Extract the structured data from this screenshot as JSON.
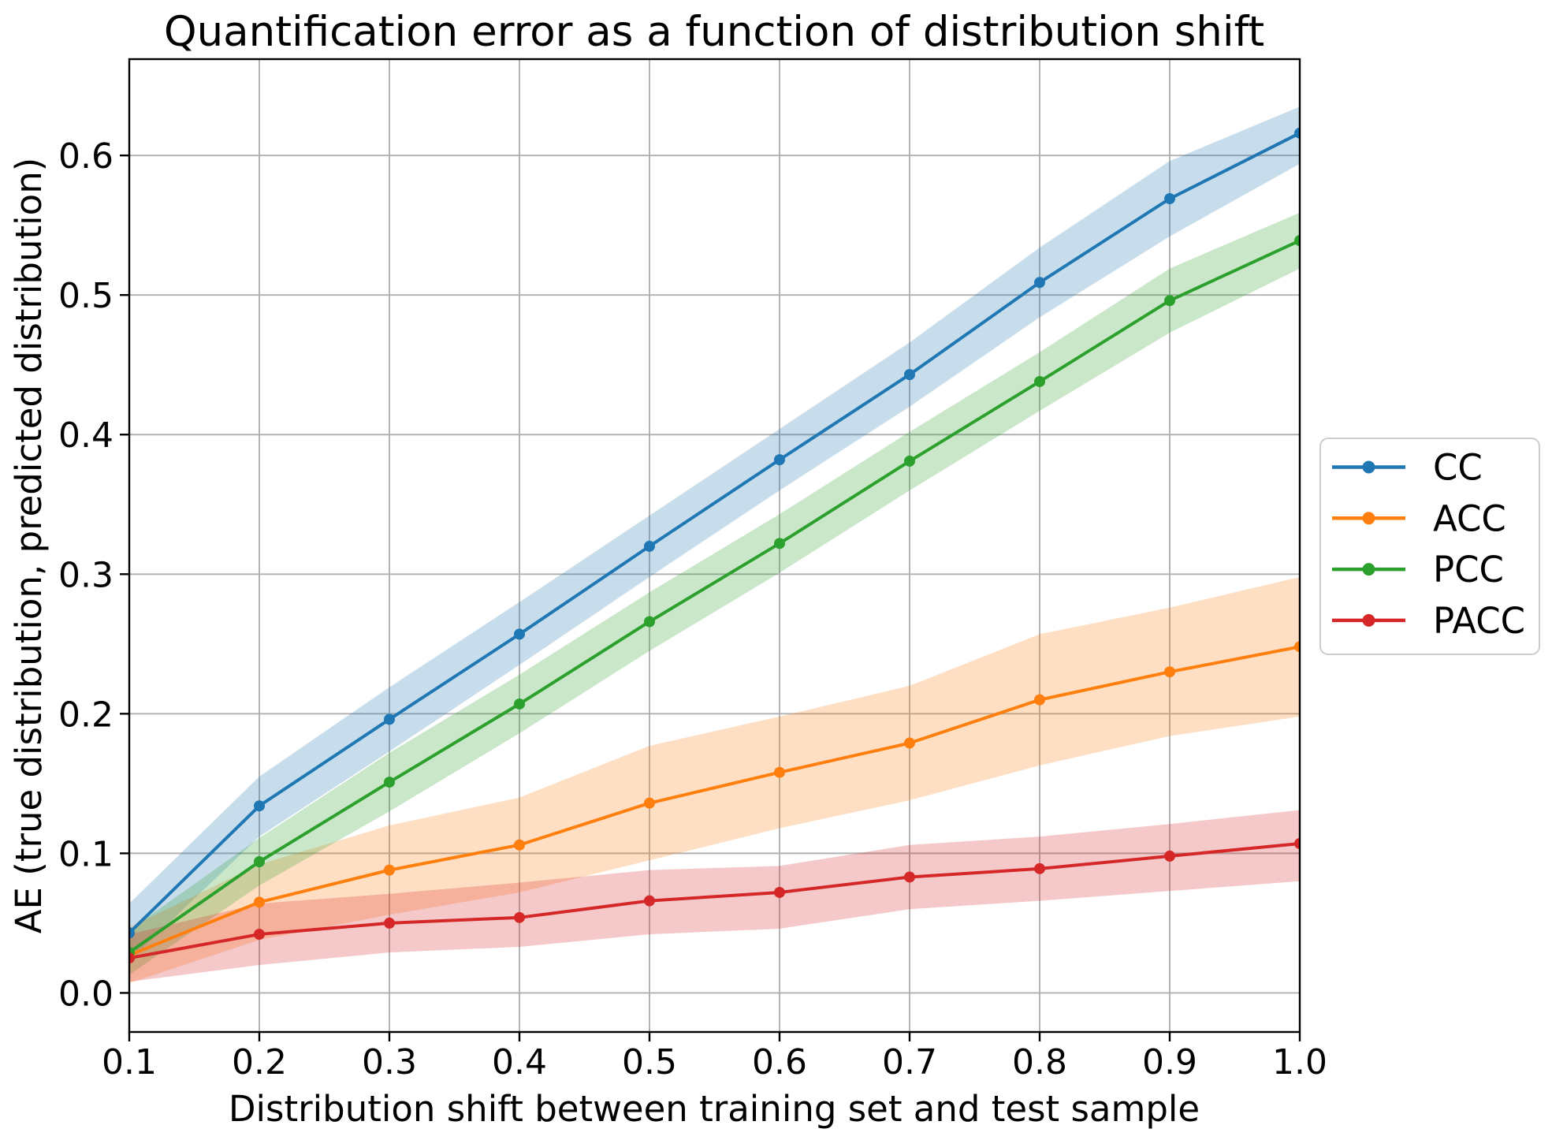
{
  "chart_data": {
    "type": "line",
    "title": "Quantification error as a function of distribution shift",
    "xlabel": "Distribution shift between training set and test sample",
    "ylabel": "AE (true distribution, predicted distribution)",
    "x": [
      0.1,
      0.2,
      0.3,
      0.4,
      0.5,
      0.6,
      0.7,
      0.8,
      0.9,
      1.0
    ],
    "xlim": [
      0.1,
      1.0
    ],
    "ylim": [
      -0.028,
      0.669
    ],
    "xticks": {
      "values": [
        0.1,
        0.2,
        0.3,
        0.4,
        0.5,
        0.6,
        0.7,
        0.8,
        0.9,
        1.0
      ],
      "labels": [
        "0.1",
        "0.2",
        "0.3",
        "0.4",
        "0.5",
        "0.6",
        "0.7",
        "0.8",
        "0.9",
        "1.0"
      ]
    },
    "yticks": {
      "values": [
        0.0,
        0.1,
        0.2,
        0.3,
        0.4,
        0.5,
        0.6
      ],
      "labels": [
        "0.0",
        "0.1",
        "0.2",
        "0.3",
        "0.4",
        "0.5",
        "0.6"
      ]
    },
    "grid": true,
    "grid_color": "#b0b0b0",
    "spine_color": "#000000",
    "background_color": "#ffffff",
    "legend": {
      "position": "outside-right",
      "border_color": "#cccccc",
      "entries": [
        "CC",
        "ACC",
        "PCC",
        "PACC"
      ]
    },
    "band_alpha": 0.25,
    "series": [
      {
        "name": "CC",
        "color": "#1f77b4",
        "values": [
          0.043,
          0.134,
          0.196,
          0.257,
          0.32,
          0.382,
          0.443,
          0.509,
          0.569,
          0.616
        ],
        "band_low": [
          0.023,
          0.112,
          0.173,
          0.235,
          0.298,
          0.36,
          0.42,
          0.484,
          0.542,
          0.594
        ],
        "band_high": [
          0.064,
          0.155,
          0.219,
          0.28,
          0.342,
          0.404,
          0.466,
          0.534,
          0.596,
          0.635
        ]
      },
      {
        "name": "ACC",
        "color": "#ff7f0e",
        "values": [
          0.027,
          0.065,
          0.088,
          0.106,
          0.136,
          0.158,
          0.179,
          0.21,
          0.23,
          0.248
        ],
        "band_low": [
          0.007,
          0.038,
          0.056,
          0.072,
          0.095,
          0.118,
          0.138,
          0.163,
          0.184,
          0.198
        ],
        "band_high": [
          0.047,
          0.092,
          0.12,
          0.14,
          0.177,
          0.198,
          0.22,
          0.257,
          0.276,
          0.298
        ]
      },
      {
        "name": "PCC",
        "color": "#2ca02c",
        "values": [
          0.029,
          0.094,
          0.151,
          0.207,
          0.266,
          0.322,
          0.381,
          0.438,
          0.496,
          0.539
        ],
        "band_low": [
          0.013,
          0.077,
          0.13,
          0.186,
          0.245,
          0.301,
          0.36,
          0.417,
          0.473,
          0.519
        ],
        "band_high": [
          0.045,
          0.111,
          0.172,
          0.228,
          0.287,
          0.343,
          0.402,
          0.459,
          0.519,
          0.559
        ]
      },
      {
        "name": "PACC",
        "color": "#d62728",
        "values": [
          0.025,
          0.042,
          0.05,
          0.054,
          0.066,
          0.072,
          0.083,
          0.089,
          0.098,
          0.107
        ],
        "band_low": [
          0.008,
          0.02,
          0.029,
          0.033,
          0.042,
          0.046,
          0.06,
          0.066,
          0.073,
          0.08
        ],
        "band_high": [
          0.042,
          0.064,
          0.071,
          0.079,
          0.088,
          0.091,
          0.106,
          0.112,
          0.121,
          0.131
        ]
      }
    ]
  }
}
